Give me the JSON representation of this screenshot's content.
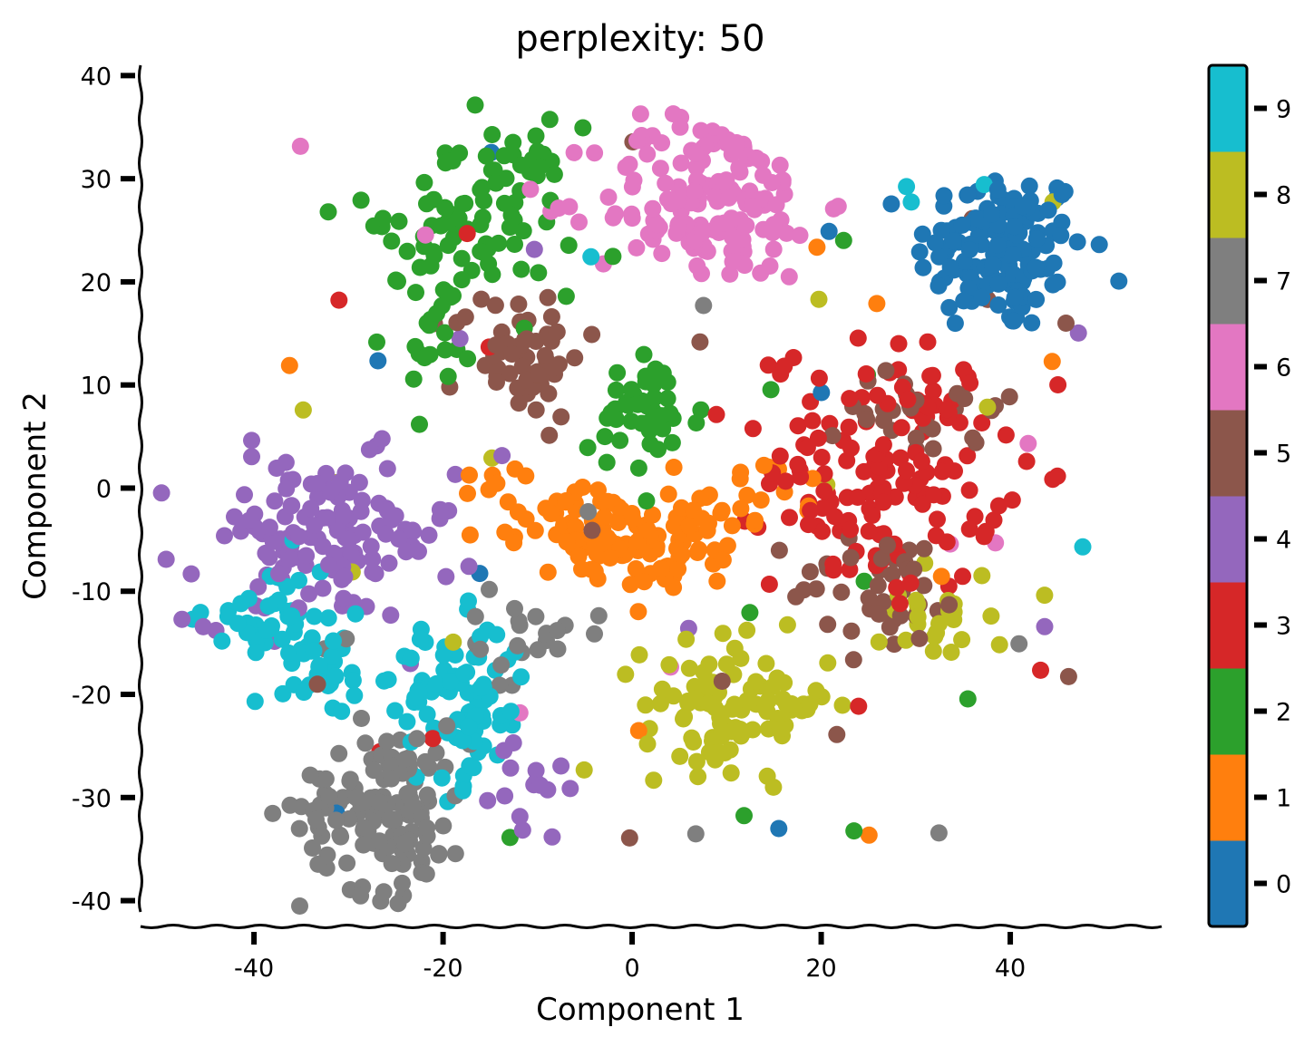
{
  "chart_data": {
    "type": "scatter",
    "title": "perplexity: 50",
    "xlabel": "Component 1",
    "ylabel": "Component 2",
    "xlim": [
      -52,
      54
    ],
    "ylim": [
      -42.5,
      41
    ],
    "xticks": [
      -40,
      -20,
      0,
      20,
      40
    ],
    "yticks": [
      40,
      30,
      20,
      10,
      0,
      -10,
      -20,
      -30,
      -40
    ],
    "colorbar": {
      "ticks": [
        0,
        1,
        2,
        3,
        4,
        5,
        6,
        7,
        8,
        9
      ],
      "range": [
        -0.5,
        9.5
      ],
      "colors": [
        "#1f77b4",
        "#ff7f0e",
        "#2ca02c",
        "#d62728",
        "#9467bd",
        "#8c564b",
        "#e377c2",
        "#7f7f7f",
        "#bcbd22",
        "#17becf"
      ]
    },
    "clusters": [
      {
        "label": 0,
        "cx": 39,
        "cy": 23,
        "sx": 4.5,
        "sy": 4,
        "n": 140
      },
      {
        "label": 1,
        "cx": 0,
        "cy": -3,
        "sx": 8,
        "sy": 2.5,
        "n": 150
      },
      {
        "label": 2,
        "cx": -16,
        "cy": 27,
        "sx": 5,
        "sy": 4,
        "n": 80
      },
      {
        "label": 2,
        "cx": -20,
        "cy": 17,
        "sx": 3,
        "sy": 4,
        "n": 30
      },
      {
        "label": 2,
        "cx": 1.5,
        "cy": 7,
        "sx": 3,
        "sy": 3,
        "n": 45
      },
      {
        "label": 3,
        "cx": 27,
        "cy": 2,
        "sx": 6,
        "sy": 6,
        "n": 150
      },
      {
        "label": 4,
        "cx": -33,
        "cy": -5,
        "sx": 7,
        "sy": 4,
        "n": 130
      },
      {
        "label": 4,
        "cx": -11,
        "cy": -29,
        "sx": 2,
        "sy": 3,
        "n": 15
      },
      {
        "label": 5,
        "cx": -12,
        "cy": 13,
        "sx": 3.5,
        "sy": 3,
        "n": 60
      },
      {
        "label": 5,
        "cx": 31,
        "cy": 8,
        "sx": 4,
        "sy": 3,
        "n": 30
      },
      {
        "label": 5,
        "cx": 27,
        "cy": -10,
        "sx": 5,
        "sy": 3,
        "n": 40
      },
      {
        "label": 6,
        "cx": 8,
        "cy": 28,
        "sx": 6,
        "sy": 4,
        "n": 150
      },
      {
        "label": 7,
        "cx": -26,
        "cy": -31,
        "sx": 4.5,
        "sy": 4,
        "n": 130
      },
      {
        "label": 7,
        "cx": -12,
        "cy": -15,
        "sx": 2.5,
        "sy": 2,
        "n": 20
      },
      {
        "label": 8,
        "cx": 11,
        "cy": -21,
        "sx": 5,
        "sy": 3,
        "n": 100
      },
      {
        "label": 8,
        "cx": 32,
        "cy": -12,
        "sx": 3,
        "sy": 2.5,
        "n": 25
      },
      {
        "label": 9,
        "cx": -18,
        "cy": -21,
        "sx": 3.5,
        "sy": 4,
        "n": 85
      },
      {
        "label": 9,
        "cx": -38,
        "cy": -13,
        "sx": 3.5,
        "sy": 3,
        "n": 45
      },
      {
        "label": 9,
        "cx": -31,
        "cy": -17,
        "sx": 3,
        "sy": 2,
        "n": 25
      }
    ]
  }
}
